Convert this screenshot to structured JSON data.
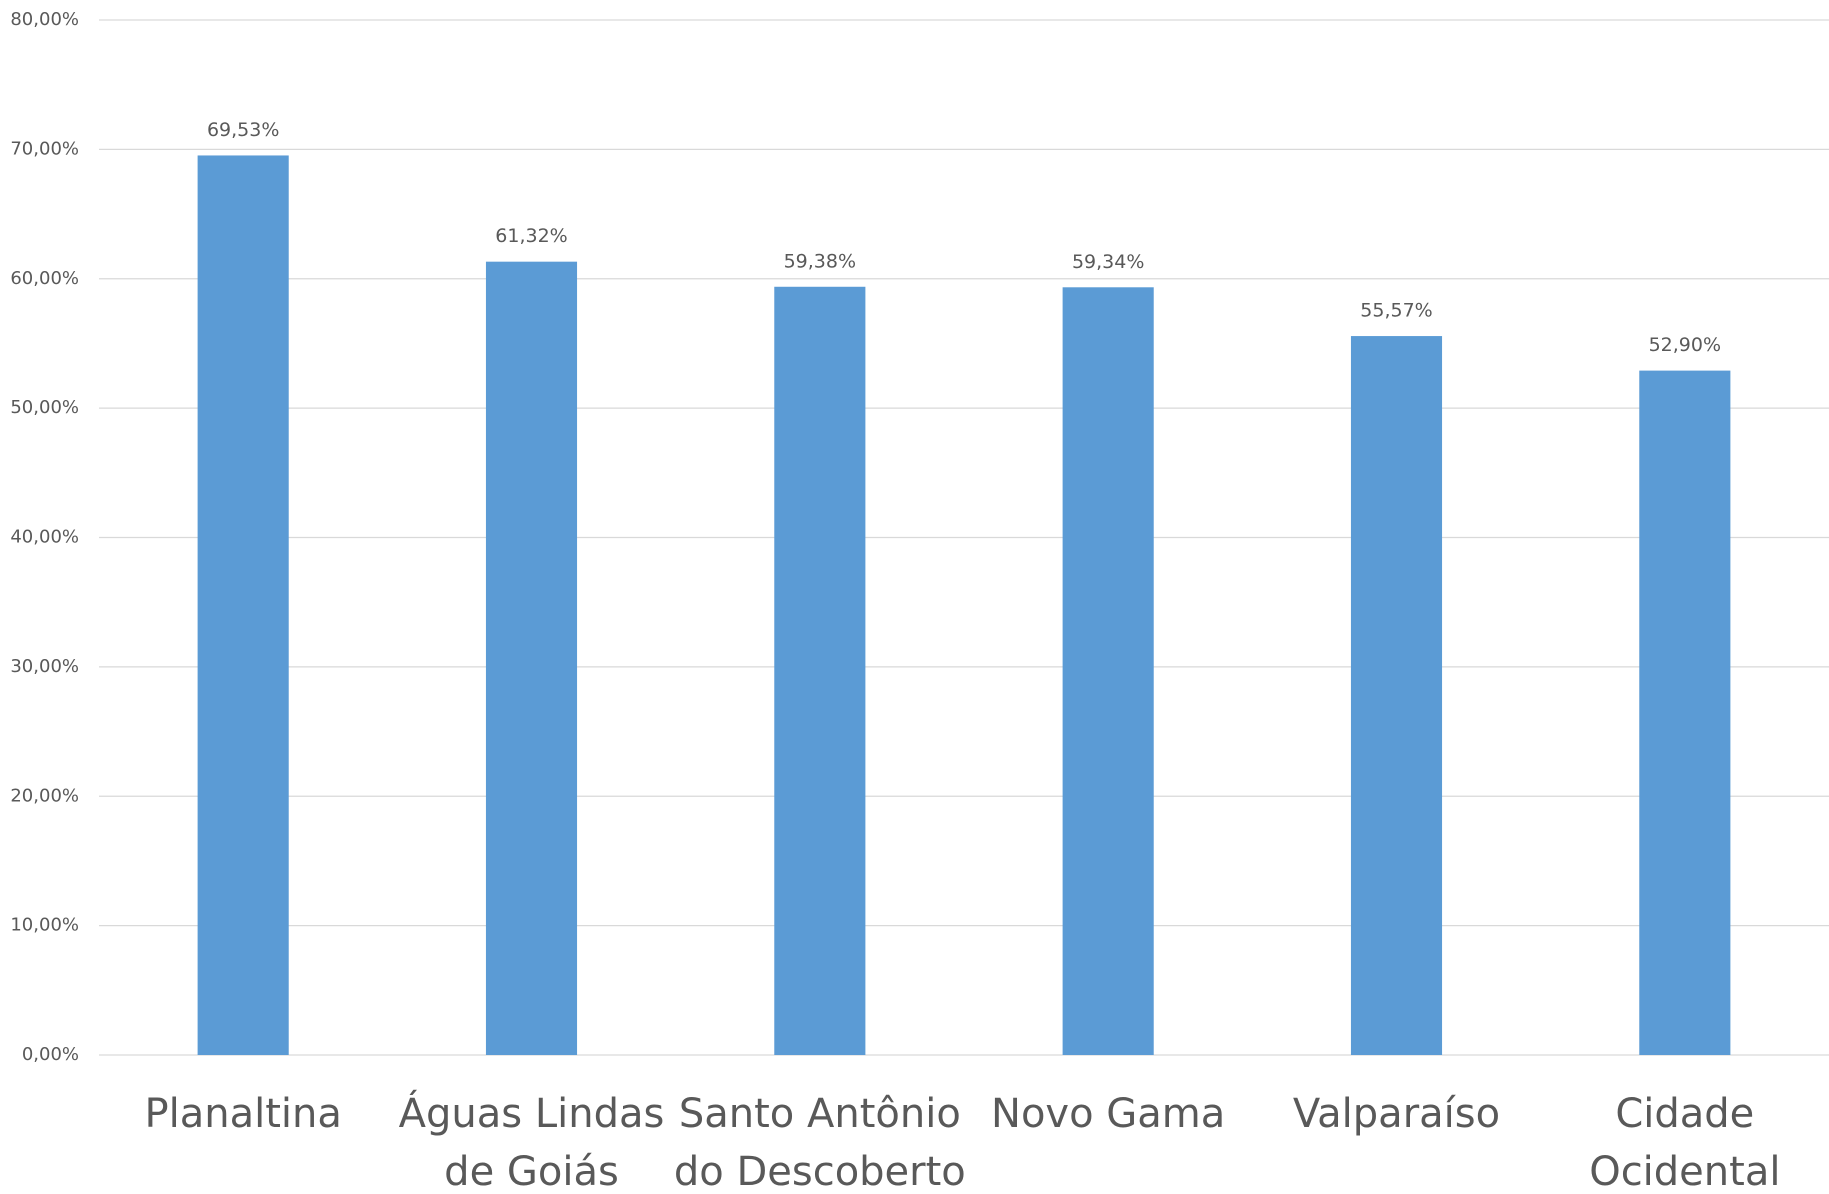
{
  "chart_data": {
    "type": "bar",
    "categories": [
      "Planaltina",
      "Águas Lindas de Goiás",
      "Santo Antônio do Descoberto",
      "Novo Gama",
      "Valparaíso",
      "Cidade Ocidental"
    ],
    "values": [
      69.53,
      61.32,
      59.38,
      59.34,
      55.57,
      52.9
    ],
    "value_labels": [
      "69,53%",
      "61,32%",
      "59,38%",
      "59,34%",
      "55,57%",
      "52,90%"
    ],
    "color": "#5b9bd5",
    "ylim": [
      0,
      80
    ],
    "yticks": [
      {
        "value": 0,
        "label": "0,00%"
      },
      {
        "value": 10,
        "label": "10,00%"
      },
      {
        "value": 20,
        "label": "20,00%"
      },
      {
        "value": 30,
        "label": "30,00%"
      },
      {
        "value": 40,
        "label": "40,00%"
      },
      {
        "value": 50,
        "label": "50,00%"
      },
      {
        "value": 60,
        "label": "60,00%"
      },
      {
        "value": 70,
        "label": "70,00%"
      },
      {
        "value": 80,
        "label": "80,00%"
      }
    ],
    "grid": true
  }
}
